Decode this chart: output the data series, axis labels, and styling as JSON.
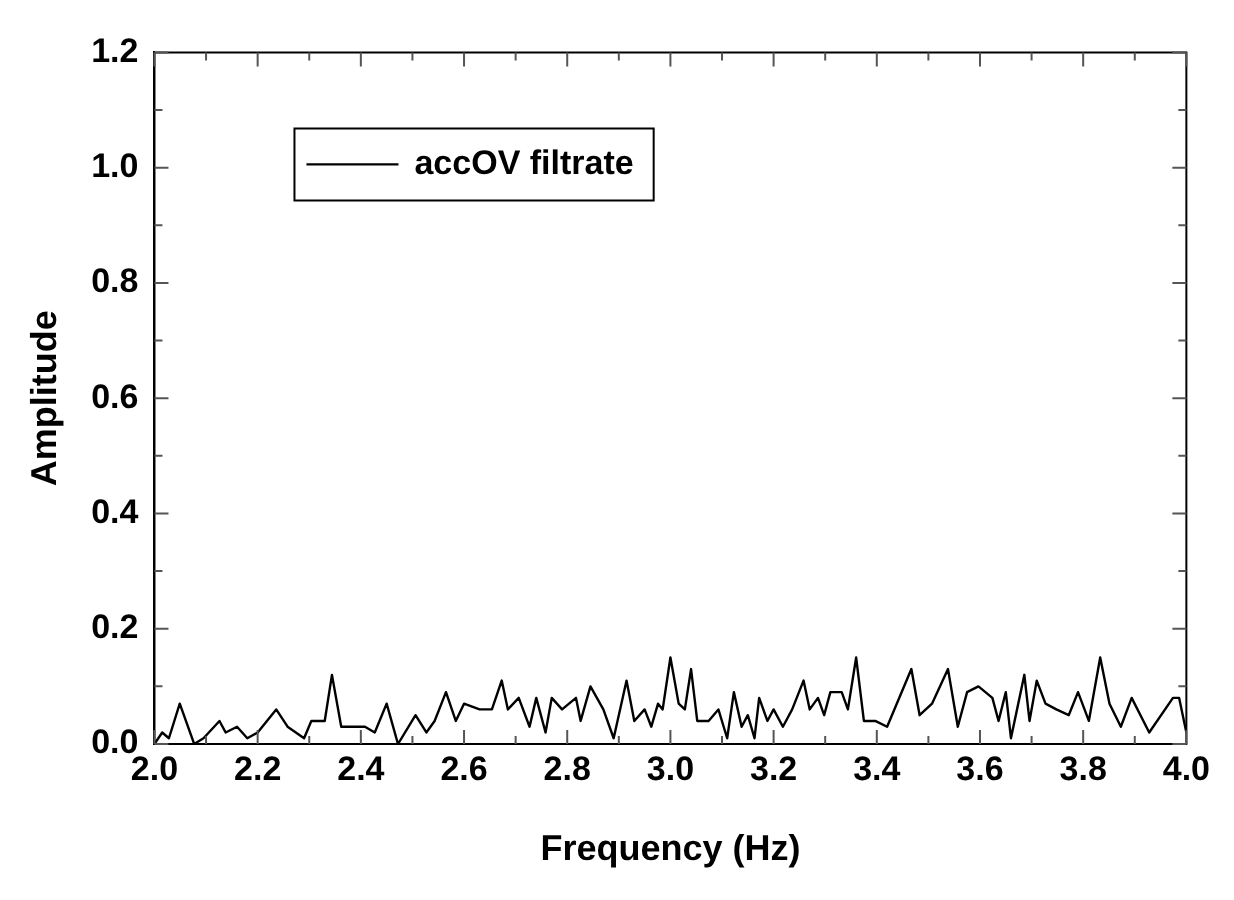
{
  "chart_data": {
    "type": "line",
    "xlabel": "Frequency (Hz)",
    "ylabel": "Amplitude",
    "legend": "top left",
    "grid": false,
    "marker": "none",
    "line_style": "solid",
    "xlim": [
      2.0,
      4.0
    ],
    "xticks": [
      {
        "value": 2.0,
        "label": "2.0"
      },
      {
        "value": 2.1,
        "label": null
      },
      {
        "value": 2.2,
        "label": "2.2"
      },
      {
        "value": 2.3,
        "label": null
      },
      {
        "value": 2.4,
        "label": "2.4"
      },
      {
        "value": 2.5,
        "label": null
      },
      {
        "value": 2.6,
        "label": "2.6"
      },
      {
        "value": 2.7,
        "label": null
      },
      {
        "value": 2.8,
        "label": "2.8"
      },
      {
        "value": 2.9,
        "label": null
      },
      {
        "value": 3.0,
        "label": "3.0"
      },
      {
        "value": 3.1,
        "label": null
      },
      {
        "value": 3.2,
        "label": "3.2"
      },
      {
        "value": 3.3,
        "label": null
      },
      {
        "value": 3.4,
        "label": "3.4"
      },
      {
        "value": 3.5,
        "label": null
      },
      {
        "value": 3.6,
        "label": "3.6"
      },
      {
        "value": 3.7,
        "label": null
      },
      {
        "value": 3.8,
        "label": "3.8"
      },
      {
        "value": 3.9,
        "label": null
      },
      {
        "value": 4.0,
        "label": "4.0"
      }
    ],
    "ylim": [
      0,
      1.2
    ],
    "yticks": [
      {
        "value": 0,
        "label": "0.0"
      },
      {
        "value": 0.1,
        "label": null
      },
      {
        "value": 0.2,
        "label": "0.2"
      },
      {
        "value": 0.3,
        "label": null
      },
      {
        "value": 0.4,
        "label": "0.4"
      },
      {
        "value": 0.5,
        "label": null
      },
      {
        "value": 0.6,
        "label": "0.6"
      },
      {
        "value": 0.7,
        "label": null
      },
      {
        "value": 0.8,
        "label": "0.8"
      },
      {
        "value": 0.9,
        "label": null
      },
      {
        "value": 1.0,
        "label": "1.0"
      },
      {
        "value": 1.1,
        "label": null
      },
      {
        "value": 1.2,
        "label": "1.2"
      }
    ],
    "series": [
      {
        "name": "accOV filtrate",
        "color": "#000000",
        "x": [
          2.0,
          2.015,
          2.028,
          2.049,
          2.077,
          2.095,
          2.126,
          2.138,
          2.16,
          2.18,
          2.2,
          2.236,
          2.258,
          2.29,
          2.304,
          2.33,
          2.344,
          2.362,
          2.387,
          2.408,
          2.427,
          2.45,
          2.472,
          2.506,
          2.527,
          2.543,
          2.565,
          2.584,
          2.6,
          2.63,
          2.654,
          2.673,
          2.685,
          2.706,
          2.727,
          2.74,
          2.758,
          2.77,
          2.79,
          2.817,
          2.826,
          2.845,
          2.87,
          2.89,
          2.915,
          2.93,
          2.95,
          2.963,
          2.976,
          2.985,
          3.0,
          3.016,
          3.028,
          3.04,
          3.052,
          3.074,
          3.093,
          3.11,
          3.123,
          3.138,
          3.15,
          3.163,
          3.172,
          3.188,
          3.2,
          3.218,
          3.236,
          3.258,
          3.27,
          3.286,
          3.298,
          3.31,
          3.332,
          3.344,
          3.36,
          3.375,
          3.397,
          3.42,
          3.467,
          3.483,
          3.507,
          3.538,
          3.557,
          3.575,
          3.597,
          3.624,
          3.636,
          3.65,
          3.66,
          3.686,
          3.696,
          3.71,
          3.727,
          3.748,
          3.772,
          3.79,
          3.811,
          3.833,
          3.851,
          3.873,
          3.894,
          3.928,
          3.974,
          3.986,
          4.0
        ],
        "values": [
          0.0,
          0.02,
          0.01,
          0.07,
          0.0,
          0.01,
          0.04,
          0.02,
          0.03,
          0.01,
          0.02,
          0.06,
          0.03,
          0.01,
          0.04,
          0.04,
          0.12,
          0.03,
          0.03,
          0.03,
          0.02,
          0.07,
          0.0,
          0.05,
          0.02,
          0.04,
          0.09,
          0.04,
          0.07,
          0.06,
          0.06,
          0.11,
          0.06,
          0.08,
          0.03,
          0.08,
          0.02,
          0.08,
          0.06,
          0.08,
          0.04,
          0.1,
          0.06,
          0.01,
          0.11,
          0.04,
          0.06,
          0.03,
          0.07,
          0.06,
          0.15,
          0.07,
          0.06,
          0.13,
          0.04,
          0.04,
          0.06,
          0.01,
          0.09,
          0.03,
          0.05,
          0.01,
          0.08,
          0.04,
          0.06,
          0.03,
          0.06,
          0.11,
          0.06,
          0.08,
          0.05,
          0.09,
          0.09,
          0.06,
          0.15,
          0.04,
          0.04,
          0.03,
          0.13,
          0.05,
          0.07,
          0.13,
          0.03,
          0.09,
          0.1,
          0.08,
          0.04,
          0.09,
          0.01,
          0.12,
          0.04,
          0.11,
          0.07,
          0.06,
          0.05,
          0.09,
          0.04,
          0.15,
          0.07,
          0.03,
          0.08,
          0.02,
          0.08,
          0.08,
          0.02
        ]
      }
    ]
  }
}
